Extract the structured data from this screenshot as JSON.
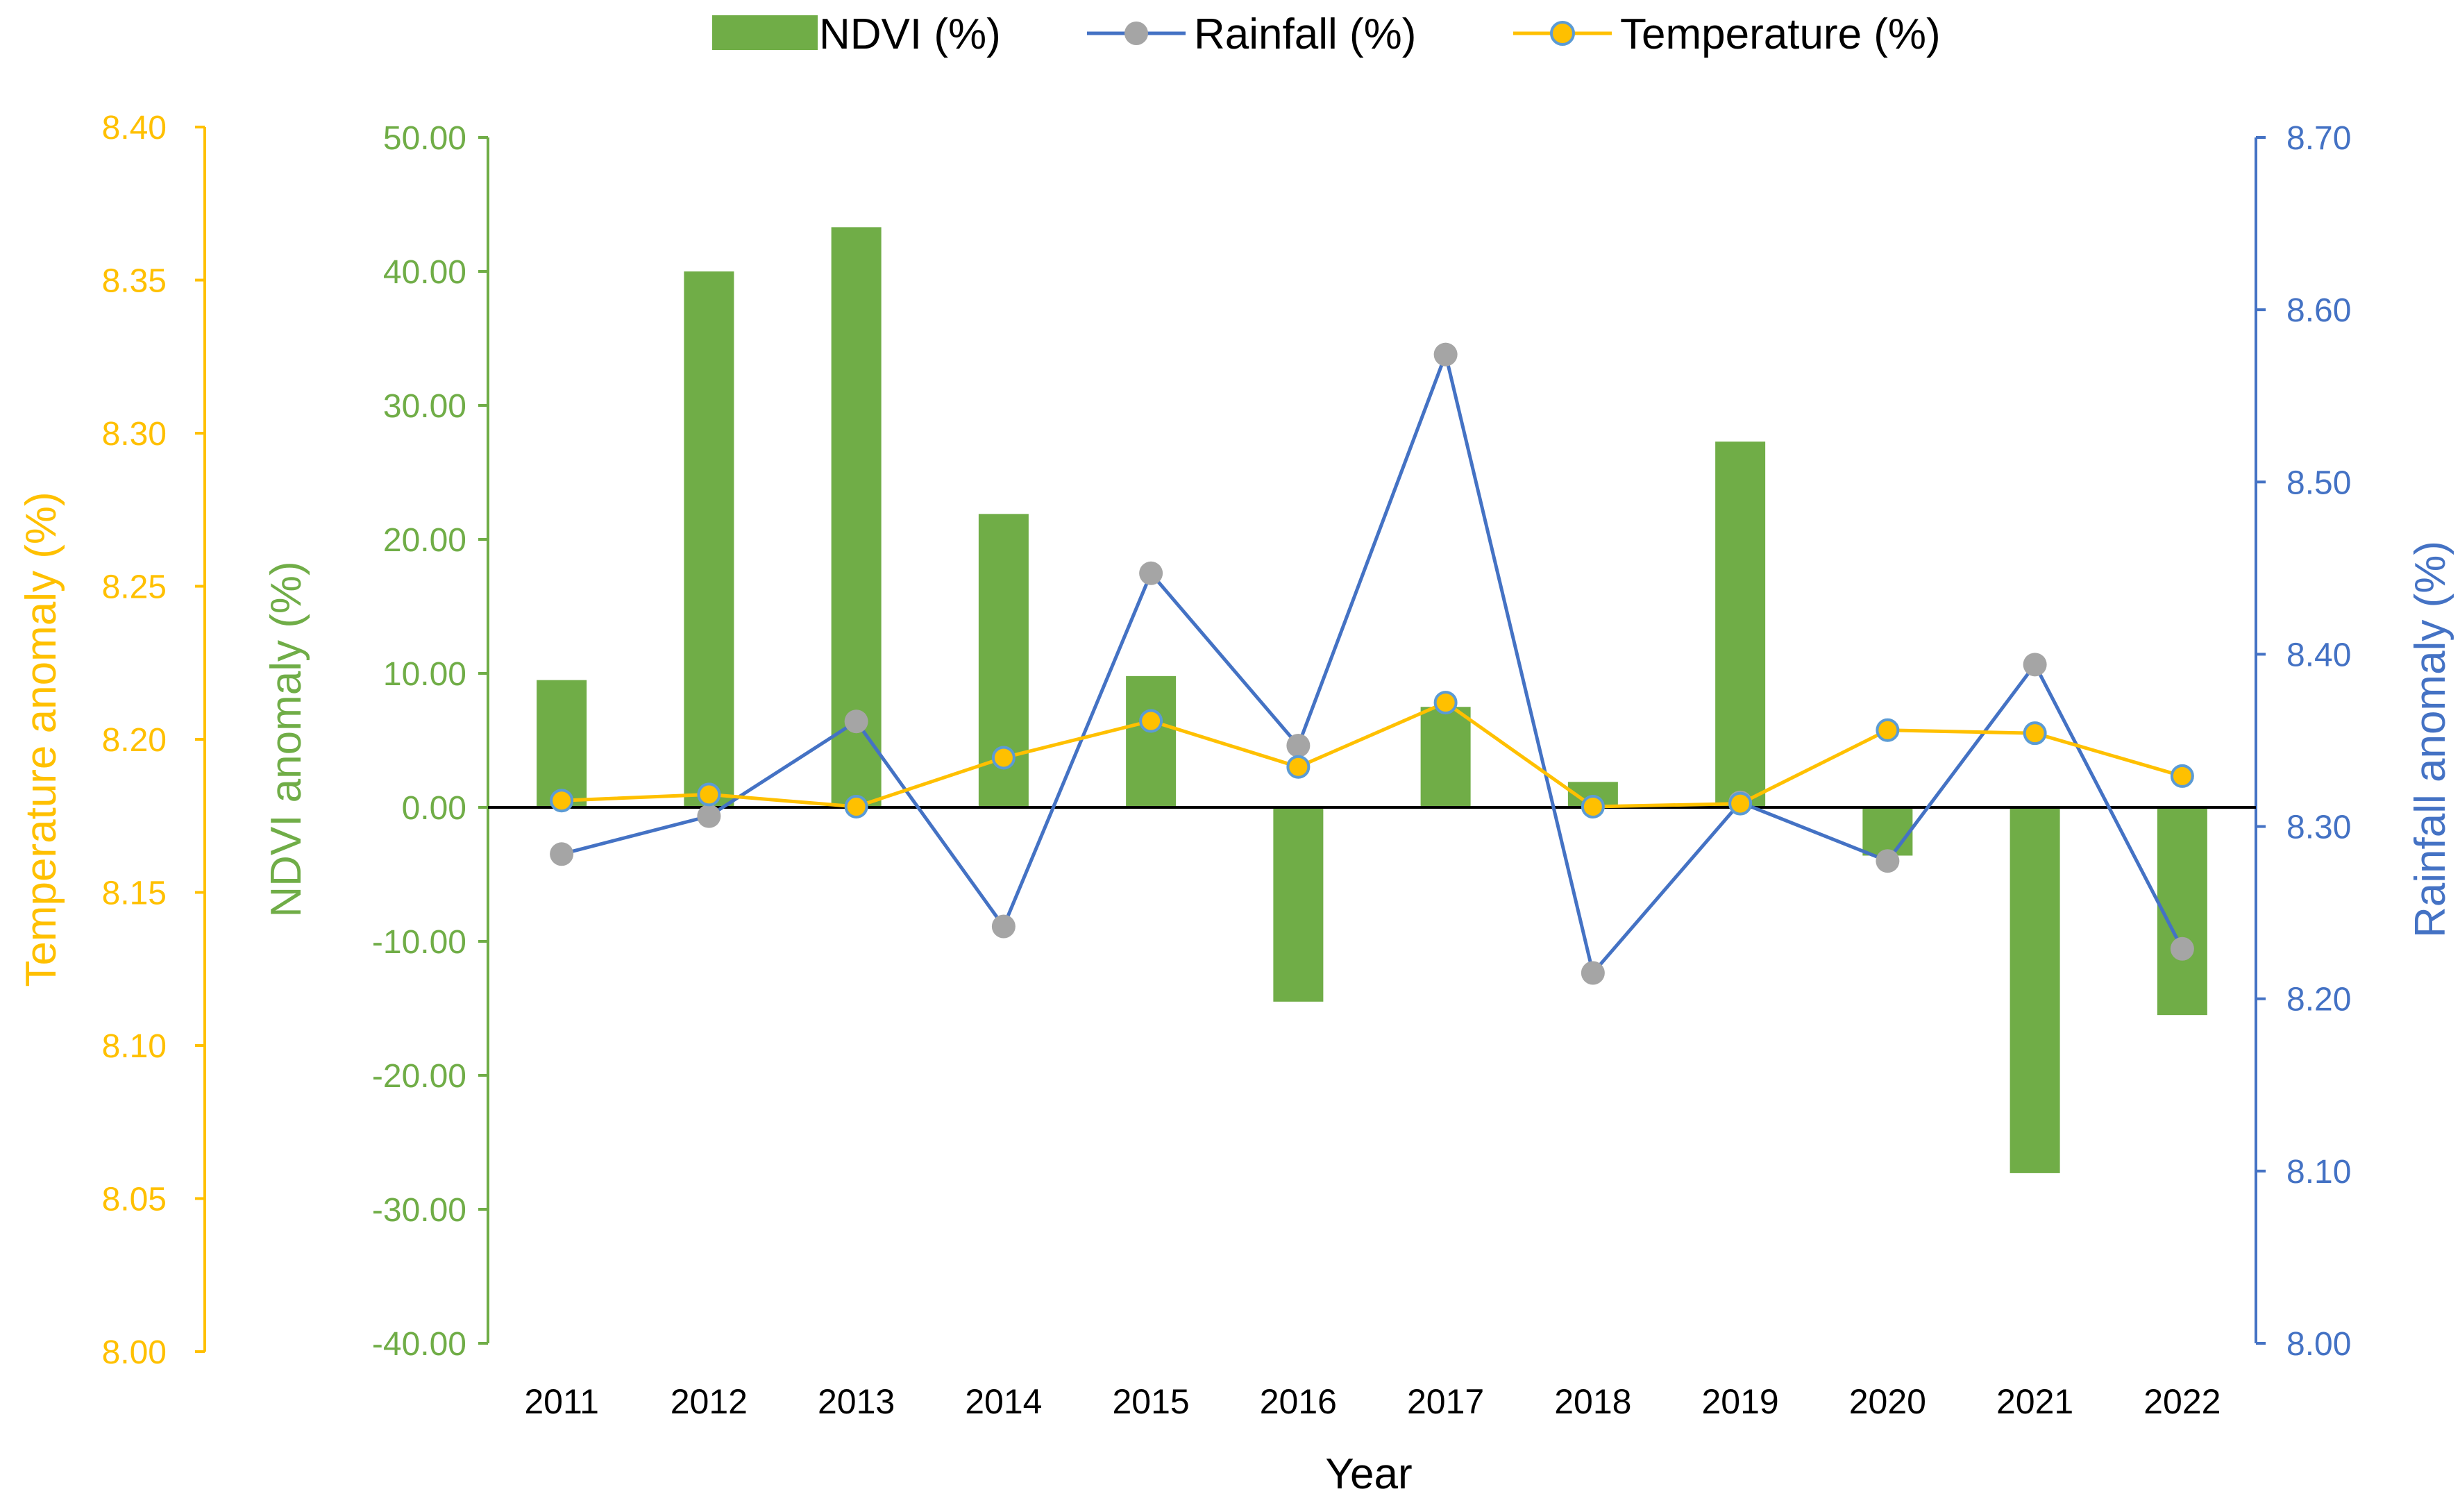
{
  "chart_data": {
    "type": "bar",
    "categories": [
      "2011",
      "2012",
      "2013",
      "2014",
      "2015",
      "2016",
      "2017",
      "2018",
      "2019",
      "2020",
      "2021",
      "2022"
    ],
    "xlabel": "Year",
    "series": [
      {
        "name": "NDVI (%)",
        "type": "bar",
        "axis": "ndvi",
        "color": "#70AD47",
        "values": [
          9.5,
          40.0,
          43.3,
          21.9,
          9.8,
          -14.5,
          7.5,
          1.9,
          27.3,
          -3.6,
          -27.3,
          -15.5
        ]
      },
      {
        "name": "Rainfall (%)",
        "type": "line",
        "axis": "rain",
        "color": "#4472C4",
        "marker_color": "#A5A5A5",
        "values": [
          8.284,
          8.306,
          8.361,
          8.242,
          8.447,
          8.347,
          8.574,
          8.215,
          8.314,
          8.28,
          8.394,
          8.229
        ]
      },
      {
        "name": "Temperature (%)",
        "type": "line",
        "axis": "temp",
        "color": "#FFC000",
        "marker_color": "#FFC000",
        "marker_edge": "#5B9BD5",
        "values": [
          8.18,
          8.182,
          8.178,
          8.194,
          8.206,
          8.191,
          8.212,
          8.178,
          8.179,
          8.203,
          8.202,
          8.188
        ]
      }
    ],
    "axes": {
      "ndvi": {
        "label": "NDVI anomaly (%)",
        "ylim": [
          -40,
          50
        ],
        "ticks": [
          "50.00",
          "40.00",
          "30.00",
          "20.00",
          "10.00",
          "0.00",
          "-10.00",
          "-20.00",
          "-30.00",
          "-40.00"
        ],
        "color": "#70AD47"
      },
      "temp": {
        "label": "Temperature anomaly (%)",
        "ylim": [
          8.0,
          8.4
        ],
        "ticks": [
          "8.40",
          "8.35",
          "8.30",
          "8.25",
          "8.20",
          "8.15",
          "8.10",
          "8.05",
          "8.00"
        ],
        "color": "#FFC000"
      },
      "rain": {
        "label": "Rainfall anomaly (%)",
        "ylim": [
          8.0,
          8.7
        ],
        "ticks": [
          "8.70",
          "8.60",
          "8.50",
          "8.40",
          "8.30",
          "8.20",
          "8.10",
          "8.00"
        ],
        "color": "#4472C4"
      }
    },
    "legend": {
      "position": "top",
      "items": [
        "NDVI (%)",
        "Rainfall (%)",
        "Temperature (%)"
      ]
    }
  }
}
